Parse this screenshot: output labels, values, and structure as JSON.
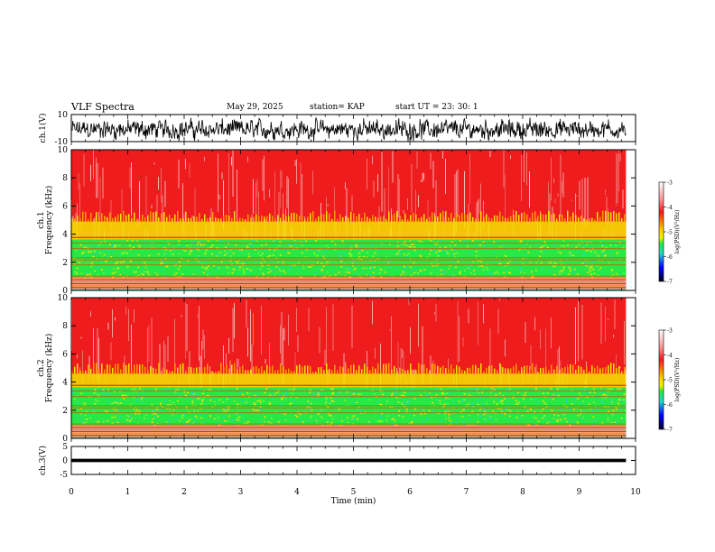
{
  "header": {
    "title": "VLF Spectra",
    "date": "May 29, 2025",
    "station": "station= KAP",
    "start_ut": "start  UT  =   23: 30: 1"
  },
  "chart_data": [
    {
      "type": "line",
      "name": "ch1-waveform",
      "ylabel": "ch.1(V)",
      "ylim": [
        -10,
        10
      ],
      "tick_labels": [
        "10",
        "-10"
      ]
    },
    {
      "type": "heatmap",
      "name": "ch1-spectrogram",
      "ylabel": "ch.1\nFrequency  (kHz)",
      "ylabel_top": "ch.1",
      "ylabel_bottom": "Frequency  (kHz)",
      "ylim": [
        0,
        10
      ],
      "yticks": [
        "0",
        "2",
        "4",
        "6",
        "8",
        "10"
      ],
      "colorbar": {
        "label": "log(PSD)(V²/Hz)",
        "range": [
          -7,
          -3
        ],
        "ticks": [
          "-3",
          "-4",
          "-5",
          "-6",
          "-7"
        ]
      }
    },
    {
      "type": "heatmap",
      "name": "ch2-spectrogram",
      "ylabel_top": "ch.2",
      "ylabel_bottom": "Frequency  (kHz)",
      "ylim": [
        0,
        10
      ],
      "yticks": [
        "0",
        "2",
        "4",
        "6",
        "8",
        "10"
      ],
      "colorbar": {
        "label": "log(PSD)(V²/Hz)",
        "range": [
          -7,
          -3
        ],
        "ticks": [
          "-3",
          "-4",
          "-5",
          "-6",
          "-7"
        ]
      }
    },
    {
      "type": "line",
      "name": "ch3-waveform",
      "ylabel": "ch.3(V)",
      "ylim": [
        -5,
        5
      ],
      "tick_labels": [
        "5",
        "0",
        "-5"
      ]
    }
  ],
  "xaxis": {
    "label": "Time  (min)",
    "xlim": [
      0,
      10
    ],
    "ticks": [
      "0",
      "1",
      "2",
      "3",
      "4",
      "5",
      "6",
      "7",
      "8",
      "9",
      "10"
    ],
    "data_end": 9.83
  },
  "colors": {
    "high": "#ee1c1c",
    "mid": "#f3e300",
    "low": "#27e845",
    "cyan": "#27d6c8",
    "blue": "#0000ff",
    "dark": "#000033"
  }
}
